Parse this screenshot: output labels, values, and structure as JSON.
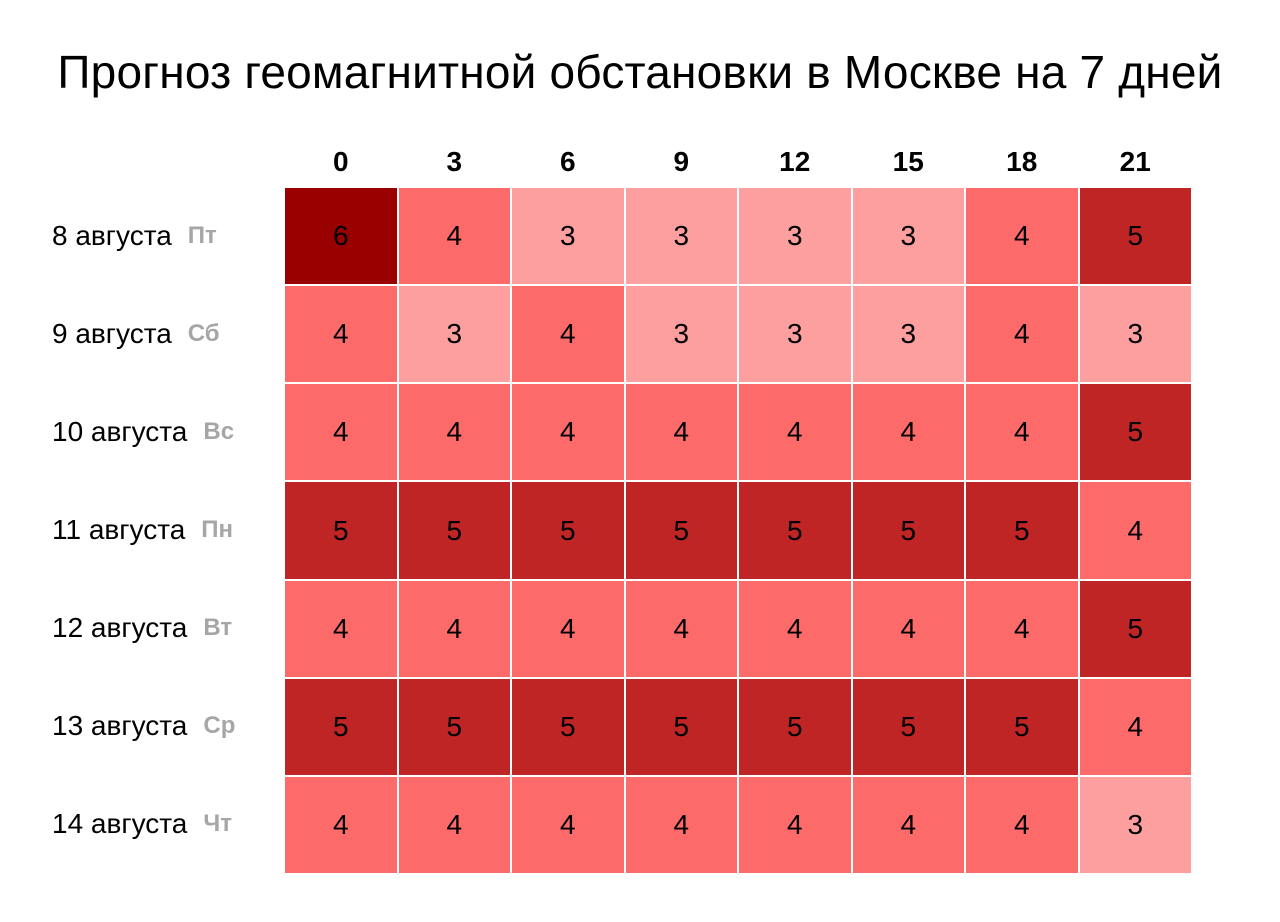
{
  "chart_data": {
    "type": "heatmap",
    "title": "Прогноз геомагнитной обстановки в Москве на 7 дней",
    "x": [
      "0",
      "3",
      "6",
      "9",
      "12",
      "15",
      "18",
      "21"
    ],
    "rows": [
      {
        "date": "8 августа",
        "weekday": "Пт",
        "values": [
          6,
          4,
          3,
          3,
          3,
          3,
          4,
          5
        ]
      },
      {
        "date": "9 августа",
        "weekday": "Сб",
        "values": [
          4,
          3,
          4,
          3,
          3,
          3,
          4,
          3
        ]
      },
      {
        "date": "10 августа",
        "weekday": "Вс",
        "values": [
          4,
          4,
          4,
          4,
          4,
          4,
          4,
          5
        ]
      },
      {
        "date": "11 августа",
        "weekday": "Пн",
        "values": [
          5,
          5,
          5,
          5,
          5,
          5,
          5,
          4
        ]
      },
      {
        "date": "12 августа",
        "weekday": "Вт",
        "values": [
          4,
          4,
          4,
          4,
          4,
          4,
          4,
          5
        ]
      },
      {
        "date": "13 августа",
        "weekday": "Ср",
        "values": [
          5,
          5,
          5,
          5,
          5,
          5,
          5,
          4
        ]
      },
      {
        "date": "14 августа",
        "weekday": "Чт",
        "values": [
          4,
          4,
          4,
          4,
          4,
          4,
          4,
          3
        ]
      }
    ],
    "color_scale": {
      "3": "#fd9f9f",
      "4": "#fc6a6a",
      "5": "#c02526",
      "6": "#990000"
    }
  }
}
